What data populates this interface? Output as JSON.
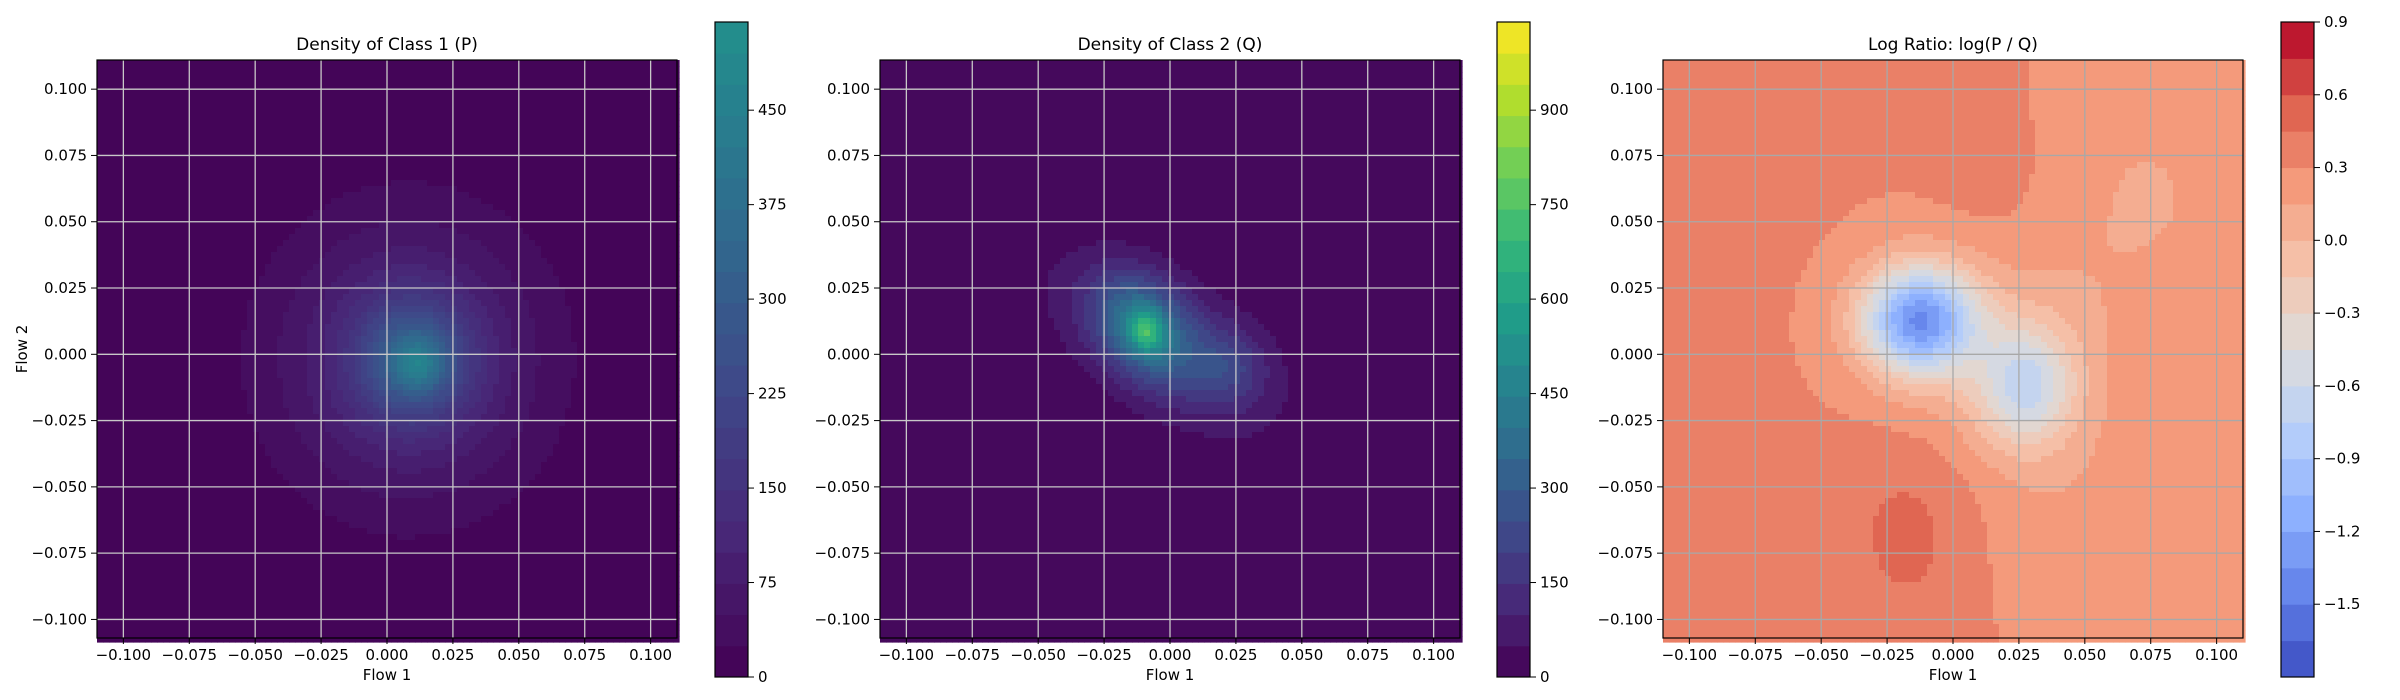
{
  "chart_data": [
    {
      "type": "heatmap",
      "title": "Density of Class 1 (P)",
      "xlabel": "Flow 1",
      "ylabel": "Flow 2",
      "xlim": [
        -0.11,
        0.11
      ],
      "ylim": [
        -0.107,
        0.111
      ],
      "x_ticks": [
        -0.1,
        -0.075,
        -0.05,
        -0.025,
        0.0,
        0.025,
        0.05,
        0.075,
        0.1
      ],
      "x_tick_labels": [
        "−0.100",
        "−0.075",
        "−0.050",
        "−0.025",
        "0.000",
        "0.025",
        "0.050",
        "0.075",
        "0.100"
      ],
      "y_ticks": [
        -0.1,
        -0.075,
        -0.05,
        -0.025,
        0.0,
        0.025,
        0.05,
        0.075,
        0.1
      ],
      "y_tick_labels": [
        "−0.100",
        "−0.075",
        "−0.050",
        "−0.025",
        "0.000",
        "0.025",
        "0.050",
        "0.075",
        "0.100"
      ],
      "grid": true,
      "colormap": "viridis",
      "colorbar": {
        "range": [
          0,
          520
        ],
        "ticks": [
          0,
          75,
          150,
          225,
          300,
          375,
          450
        ],
        "tick_labels": [
          "0",
          "75",
          "150",
          "225",
          "300",
          "375",
          "450"
        ],
        "levels": 21,
        "visible_top_fraction": 0.5
      },
      "density_blobs": [
        {
          "cx": 0.008,
          "cy": -0.002,
          "sx": 0.034,
          "sy": 0.036,
          "rho": 0.0,
          "amp": 140
        },
        {
          "cx": 0.01,
          "cy": -0.002,
          "sx": 0.014,
          "sy": 0.015,
          "rho": 0.0,
          "amp": 220
        },
        {
          "cx": 0.012,
          "cy": -0.004,
          "sx": 0.006,
          "sy": 0.006,
          "rho": 0.0,
          "amp": 120
        }
      ]
    },
    {
      "type": "heatmap",
      "title": "Density of Class 2 (Q)",
      "xlabel": "Flow 1",
      "ylabel": "",
      "xlim": [
        -0.11,
        0.11
      ],
      "ylim": [
        -0.107,
        0.111
      ],
      "x_ticks": [
        -0.1,
        -0.075,
        -0.05,
        -0.025,
        0.0,
        0.025,
        0.05,
        0.075,
        0.1
      ],
      "x_tick_labels": [
        "−0.100",
        "−0.075",
        "−0.050",
        "−0.025",
        "0.000",
        "0.025",
        "0.050",
        "0.075",
        "0.100"
      ],
      "y_ticks": [
        -0.1,
        -0.075,
        -0.05,
        -0.025,
        0.0,
        0.025,
        0.05,
        0.075,
        0.1
      ],
      "y_tick_labels": [
        "−0.100",
        "−0.075",
        "−0.050",
        "−0.025",
        "0.000",
        "0.025",
        "0.050",
        "0.075",
        "0.100"
      ],
      "grid": true,
      "colormap": "viridis",
      "colorbar": {
        "range": [
          0,
          1040
        ],
        "ticks": [
          0,
          150,
          300,
          450,
          600,
          750,
          900
        ],
        "tick_labels": [
          "0",
          "150",
          "300",
          "450",
          "600",
          "750",
          "900"
        ],
        "levels": 21,
        "visible_top_fraction": 1.0
      },
      "density_blobs": [
        {
          "cx": -0.002,
          "cy": 0.004,
          "sx": 0.028,
          "sy": 0.022,
          "rho": -0.55,
          "amp": 170
        },
        {
          "cx": -0.01,
          "cy": 0.01,
          "sx": 0.012,
          "sy": 0.013,
          "rho": -0.3,
          "amp": 330
        },
        {
          "cx": 0.022,
          "cy": -0.004,
          "sx": 0.01,
          "sy": 0.01,
          "rho": 0.0,
          "amp": 120
        },
        {
          "cx": -0.009,
          "cy": 0.009,
          "sx": 0.004,
          "sy": 0.005,
          "rho": 0.0,
          "amp": 260
        }
      ]
    },
    {
      "type": "heatmap",
      "title": "Log Ratio: log(P / Q)",
      "xlabel": "Flow 1",
      "ylabel": "",
      "xlim": [
        -0.11,
        0.11
      ],
      "ylim": [
        -0.107,
        0.111
      ],
      "x_ticks": [
        -0.1,
        -0.075,
        -0.05,
        -0.025,
        0.0,
        0.025,
        0.05,
        0.075,
        0.1
      ],
      "x_tick_labels": [
        "−0.100",
        "−0.075",
        "−0.050",
        "−0.025",
        "0.000",
        "0.025",
        "0.050",
        "0.075",
        "0.100"
      ],
      "y_ticks": [
        -0.1,
        -0.075,
        -0.05,
        -0.025,
        0.0,
        0.025,
        0.05,
        0.075,
        0.1
      ],
      "y_tick_labels": [
        "−0.100",
        "−0.075",
        "−0.050",
        "−0.025",
        "0.000",
        "0.025",
        "0.050",
        "0.075",
        "0.100"
      ],
      "grid": true,
      "colormap": "coolwarm",
      "colorbar": {
        "range": [
          -1.8,
          0.9
        ],
        "ticks": [
          -1.5,
          -1.2,
          -0.9,
          -0.6,
          -0.3,
          0.0,
          0.3,
          0.6,
          0.9
        ],
        "tick_labels": [
          "−1.5",
          "−1.2",
          "−0.9",
          "−0.6",
          "−0.3",
          "0.0",
          "0.3",
          "0.6",
          "0.9"
        ],
        "levels": 18,
        "visible_top_fraction": 1.0
      },
      "ratio_field": {
        "base": 0.32,
        "blobs": [
          {
            "cx": -0.013,
            "cy": 0.013,
            "sx": 0.015,
            "sy": 0.014,
            "amp": -1.55
          },
          {
            "cx": 0.028,
            "cy": -0.012,
            "sx": 0.013,
            "sy": 0.016,
            "amp": -0.8
          },
          {
            "cx": 0.012,
            "cy": 0.0,
            "sx": 0.03,
            "sy": 0.03,
            "amp": -0.25
          },
          {
            "cx": 0.07,
            "cy": 0.06,
            "sx": 0.04,
            "sy": 0.04,
            "amp": -0.18
          },
          {
            "cx": 0.06,
            "cy": -0.07,
            "sx": 0.04,
            "sy": 0.03,
            "amp": -0.15
          },
          {
            "cx": -0.015,
            "cy": -0.065,
            "sx": 0.02,
            "sy": 0.03,
            "amp": 0.2
          },
          {
            "cx": 0.02,
            "cy": 0.06,
            "sx": 0.02,
            "sy": 0.03,
            "amp": 0.12
          }
        ]
      }
    }
  ]
}
